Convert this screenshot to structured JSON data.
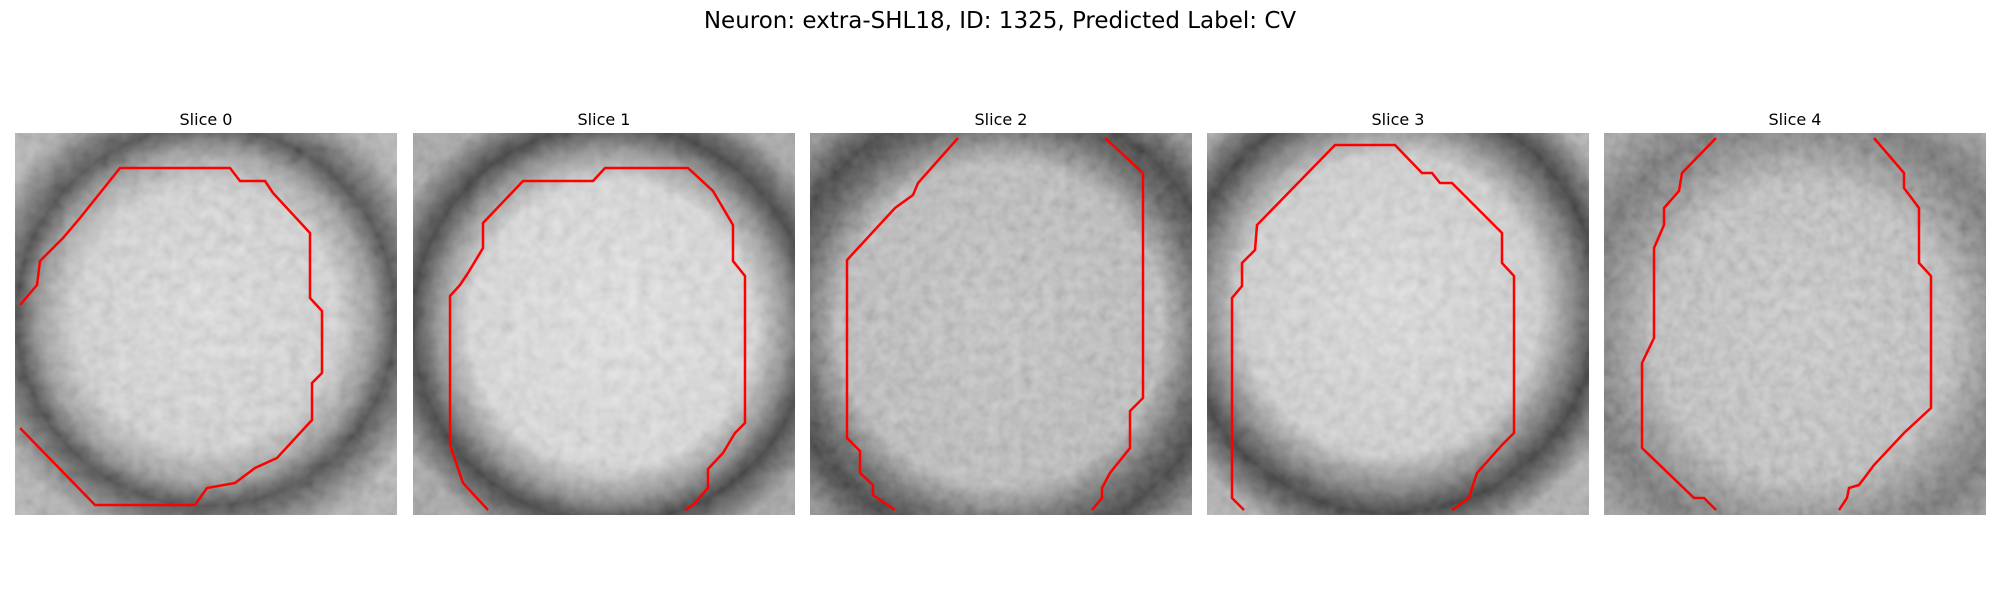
{
  "figure": {
    "title": "Neuron: extra-SHL18, ID: 1325, Predicted Label: CV"
  },
  "panels": [
    {
      "title": "Slice 0"
    },
    {
      "title": "Slice 1"
    },
    {
      "title": "Slice 2"
    },
    {
      "title": "Slice 3"
    },
    {
      "title": "Slice 4"
    }
  ],
  "style": {
    "contour_color": "#ff0000",
    "colormap": "grayscale"
  }
}
